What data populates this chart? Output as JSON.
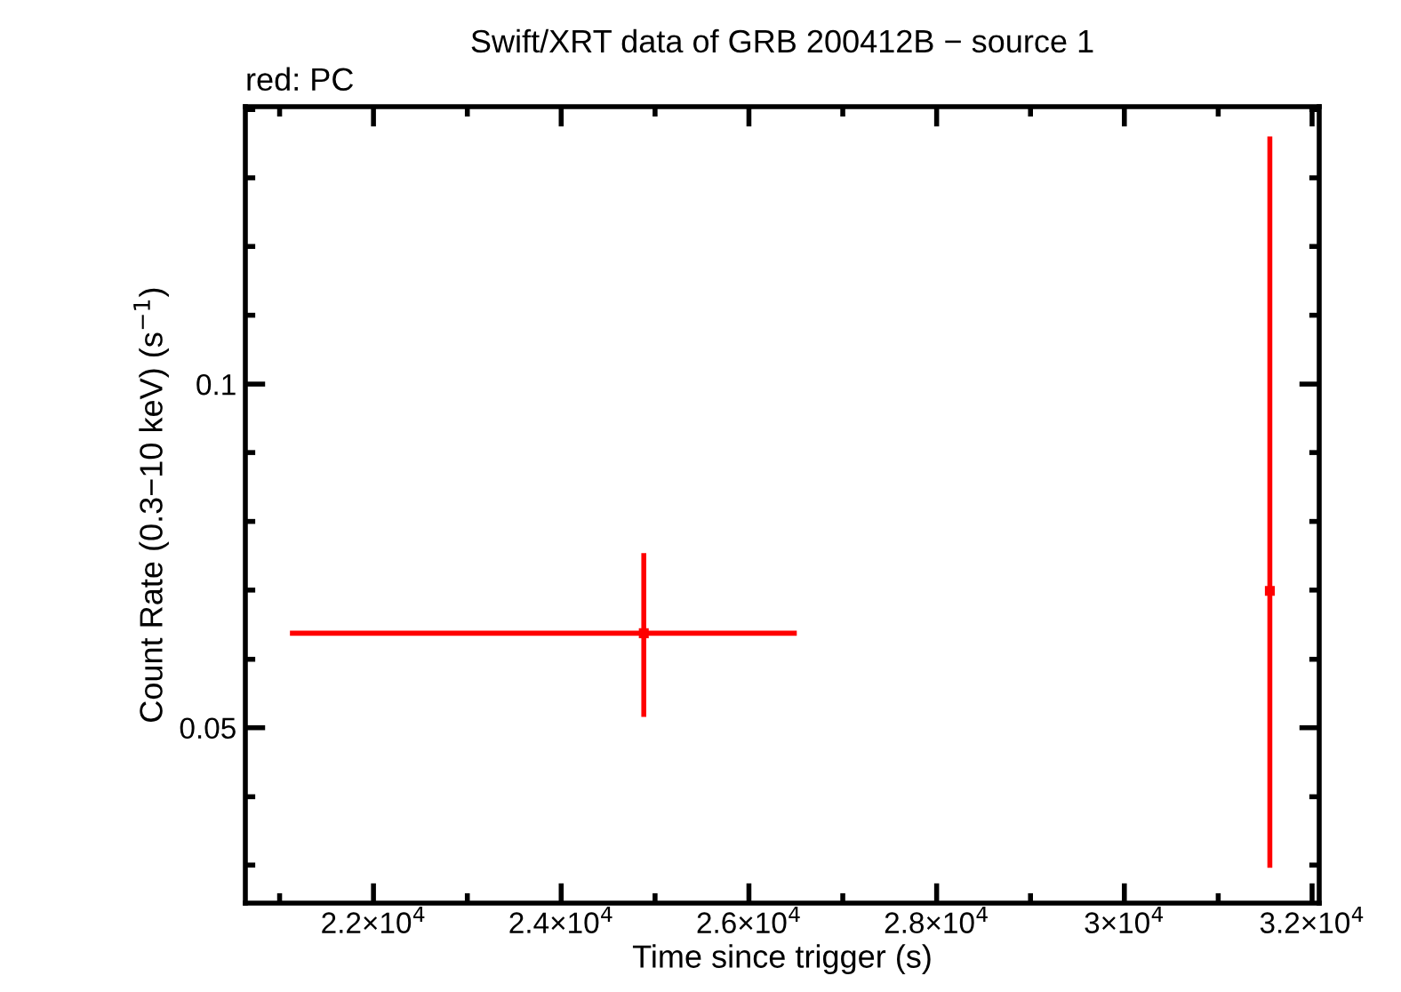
{
  "chart_data": {
    "type": "scatter",
    "title": "Swift/XRT data of GRB 200412B − source 1",
    "xlabel": "Time since trigger (s)",
    "ylabel": "Count Rate (0.3−10 keV) (s$^{−1}$)",
    "annotations": [
      "red: PC"
    ],
    "x": [
      24880,
      31550
    ],
    "series": [
      {
        "color": "#ff0000",
        "values": [
          0.0605,
          0.0659
        ],
        "xerrors": [
          [
            21110,
            26510
          ],
          [
            31530,
            31570
          ]
        ],
        "errors": [
          [
            0.0511,
            0.0711
          ],
          [
            0.0377,
            0.1648
          ]
        ]
      }
    ],
    "log": "y",
    "marker": "square",
    "grid": false,
    "legend": false,
    "xlim": [
      20635,
      32076
    ],
    "ylim": [
      0.0351,
      0.175
    ],
    "xticks": [
      {
        "value": 21000,
        "label": null
      },
      {
        "value": 22000,
        "label": "2.2×10$^{4}$"
      },
      {
        "value": 23000,
        "label": null
      },
      {
        "value": 24000,
        "label": "2.4×10$^{4}$"
      },
      {
        "value": 25000,
        "label": null
      },
      {
        "value": 26000,
        "label": "2.6×10$^{4}$"
      },
      {
        "value": 27000,
        "label": null
      },
      {
        "value": 28000,
        "label": "2.8×10$^{4}$"
      },
      {
        "value": 29000,
        "label": null
      },
      {
        "value": 30000,
        "label": "3×10$^{4}$"
      },
      {
        "value": 31000,
        "label": null
      },
      {
        "value": 32000,
        "label": "3.2×10$^{4}$"
      }
    ],
    "yticks": [
      {
        "value": 0.0379,
        "label": null
      },
      {
        "value": 0.0435,
        "label": null
      },
      0.05,
      {
        "value": 0.0574,
        "label": null
      },
      {
        "value": 0.066,
        "label": null
      },
      {
        "value": 0.0758,
        "label": null
      },
      {
        "value": 0.0871,
        "label": null
      },
      0.1,
      {
        "value": 0.1149,
        "label": null
      },
      {
        "value": 0.132,
        "label": null
      },
      {
        "value": 0.1516,
        "label": null
      },
      {
        "value": 0.174,
        "label": null
      }
    ]
  }
}
